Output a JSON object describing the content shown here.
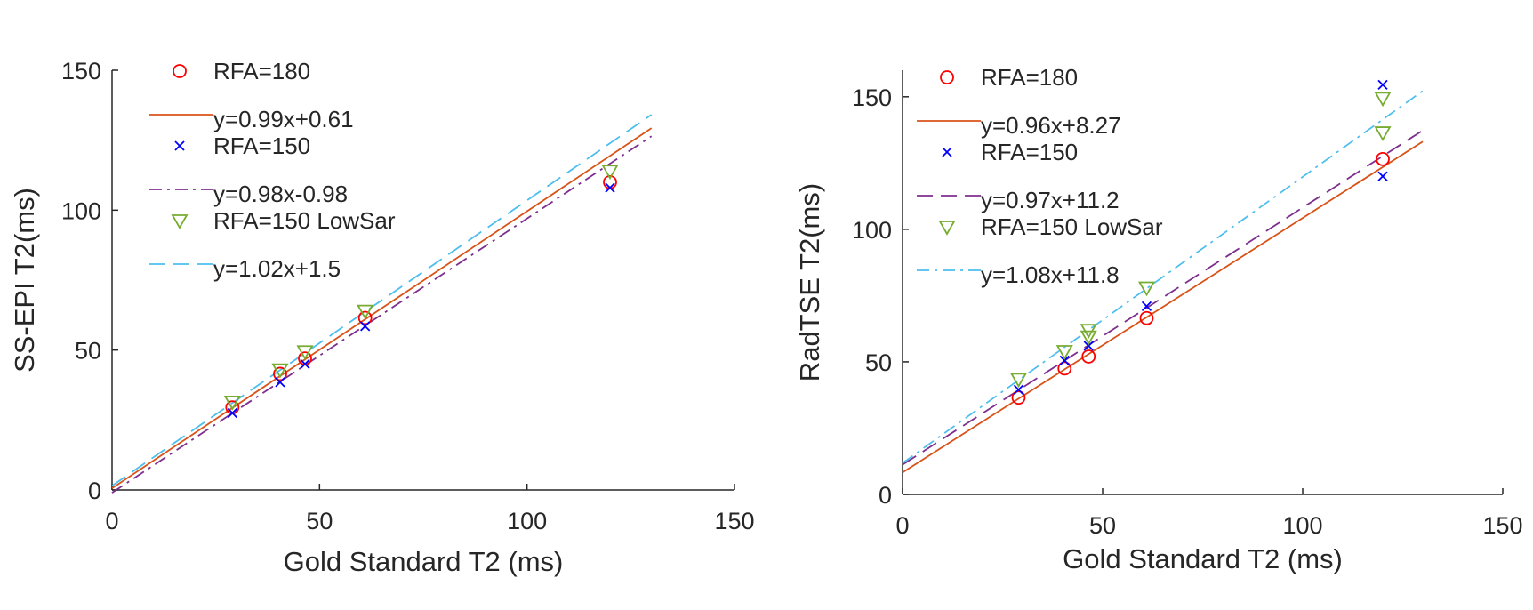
{
  "chart_data": [
    {
      "type": "scatter",
      "xlabel": "Gold Standard T2 (ms)",
      "ylabel": "SS-EPI T2(ms)",
      "xlim": [
        0,
        150
      ],
      "ylim": [
        0,
        150
      ],
      "xticks": [
        0,
        50,
        100,
        150
      ],
      "yticks": [
        0,
        50,
        100,
        150
      ],
      "legend_position": "top-left",
      "series": [
        {
          "name": "RFA=180",
          "kind": "points",
          "marker": "circle",
          "color": "#ff0000",
          "x": [
            29,
            40.5,
            46.5,
            61,
            120
          ],
          "y": [
            29.5,
            41.5,
            47,
            61.5,
            110
          ]
        },
        {
          "name": "y=0.99x+0.61",
          "kind": "fit",
          "dash": "solid",
          "color": "#d95319",
          "slope": 0.99,
          "intercept": 0.61,
          "xrange": [
            0,
            130
          ]
        },
        {
          "name": "RFA=150",
          "kind": "points",
          "marker": "x",
          "color": "#0000ff",
          "x": [
            29,
            40.5,
            46.5,
            61,
            120
          ],
          "y": [
            27.5,
            38.5,
            45,
            58.5,
            108
          ]
        },
        {
          "name": "y=0.98x-0.98",
          "kind": "fit",
          "dash": "dashdot",
          "color": "#7e2f8e",
          "slope": 0.98,
          "intercept": -0.98,
          "xrange": [
            0,
            130
          ]
        },
        {
          "name": "RFA=150 LowSar",
          "kind": "points",
          "marker": "triangle-down",
          "color": "#77ac30",
          "x": [
            29,
            40.5,
            46.5,
            61,
            120
          ],
          "y": [
            31.5,
            43,
            49.5,
            64,
            114
          ]
        },
        {
          "name": "y=1.02x+1.5",
          "kind": "fit",
          "dash": "dashed",
          "color": "#4dbeee",
          "slope": 1.02,
          "intercept": 1.5,
          "xrange": [
            0,
            130
          ]
        }
      ]
    },
    {
      "type": "scatter",
      "xlabel": "Gold Standard T2 (ms)",
      "ylabel": "RadTSE T2(ms)",
      "xlim": [
        0,
        150
      ],
      "ylim": [
        0,
        160
      ],
      "xticks": [
        0,
        50,
        100,
        150
      ],
      "yticks": [
        0,
        50,
        100,
        150
      ],
      "legend_position": "top-left",
      "series": [
        {
          "name": "RFA=180",
          "kind": "points",
          "marker": "circle",
          "color": "#ff0000",
          "x": [
            29,
            40.5,
            46.5,
            61,
            120
          ],
          "y": [
            36.5,
            47.5,
            52,
            66.5,
            126.5
          ]
        },
        {
          "name": "y=0.96x+8.27",
          "kind": "fit",
          "dash": "solid",
          "color": "#d95319",
          "slope": 0.96,
          "intercept": 8.27,
          "xrange": [
            0,
            130
          ]
        },
        {
          "name": "RFA=150",
          "kind": "points",
          "marker": "x",
          "color": "#0000ff",
          "x": [
            29,
            40.5,
            46.5,
            61,
            120,
            120
          ],
          "y": [
            39.5,
            50.5,
            56,
            71,
            154.5,
            120
          ]
        },
        {
          "name": "y=0.97x+11.2",
          "kind": "fit",
          "dash": "dashed",
          "color": "#7e2f8e",
          "slope": 0.97,
          "intercept": 11.2,
          "xrange": [
            0,
            130
          ]
        },
        {
          "name": "RFA=150 LowSar",
          "kind": "points",
          "marker": "triangle-down",
          "color": "#77ac30",
          "x": [
            29,
            40.5,
            46.5,
            46.5,
            61,
            120,
            120
          ],
          "y": [
            43.5,
            54,
            59.5,
            62,
            78,
            149.5,
            136.5
          ]
        },
        {
          "name": "y=1.08x+11.8",
          "kind": "fit",
          "dash": "dashdot",
          "color": "#4dbeee",
          "slope": 1.08,
          "intercept": 11.8,
          "xrange": [
            0,
            130
          ]
        }
      ]
    }
  ]
}
